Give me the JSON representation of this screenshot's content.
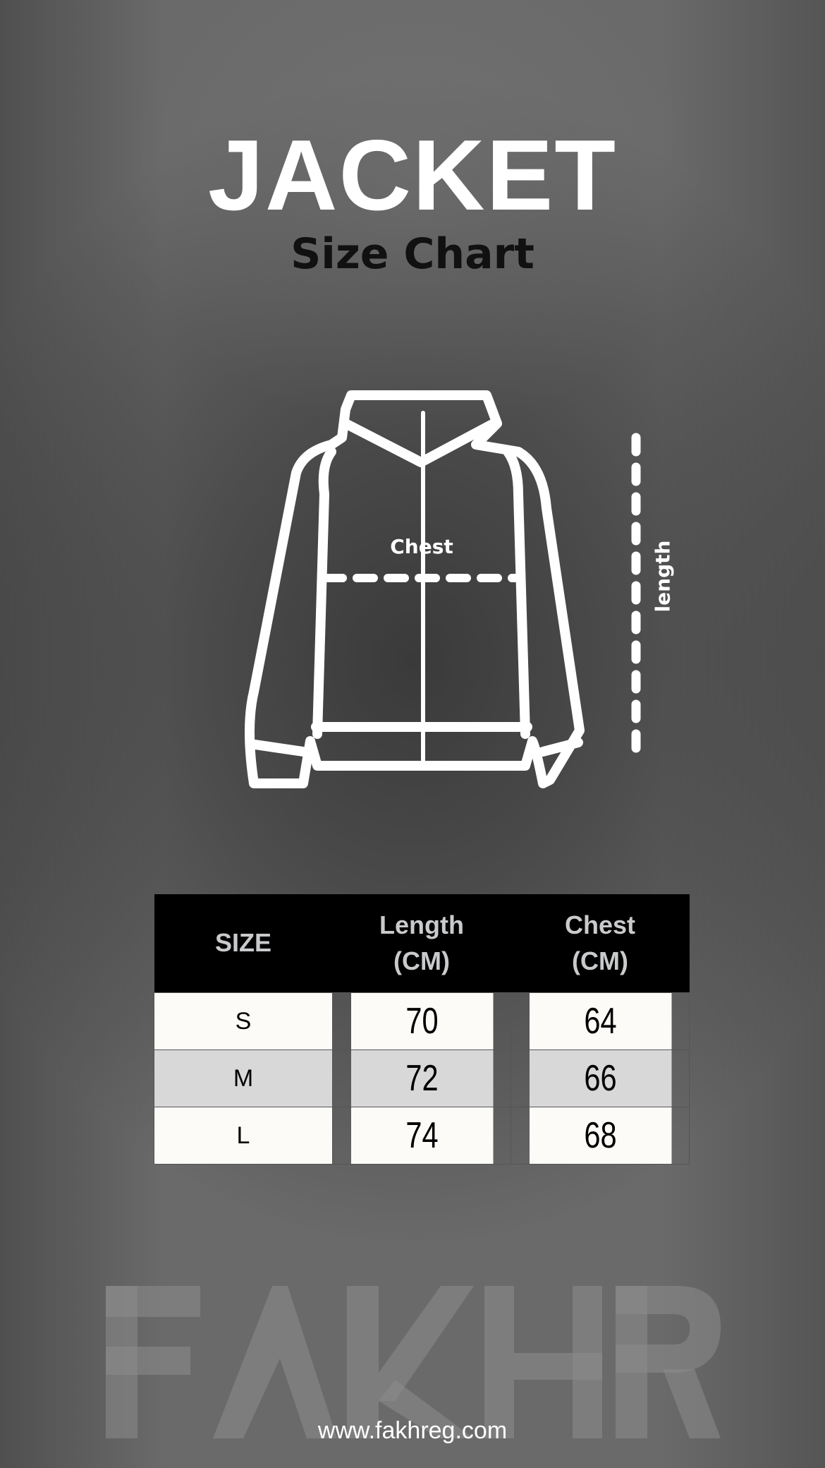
{
  "title": "JACKET",
  "subtitle": "Size Chart",
  "diagram": {
    "chest_label": "Chest",
    "length_label": "length"
  },
  "table": {
    "headers": [
      "SIZE",
      "Length (CM)",
      "Chest (CM)"
    ],
    "rows": [
      [
        "S",
        "70",
        "64"
      ],
      [
        "M",
        "72",
        "66"
      ],
      [
        "L",
        "74",
        "68"
      ]
    ]
  },
  "brand": {
    "watermark": "FAKHR",
    "website": "www.fakhreg.com"
  }
}
